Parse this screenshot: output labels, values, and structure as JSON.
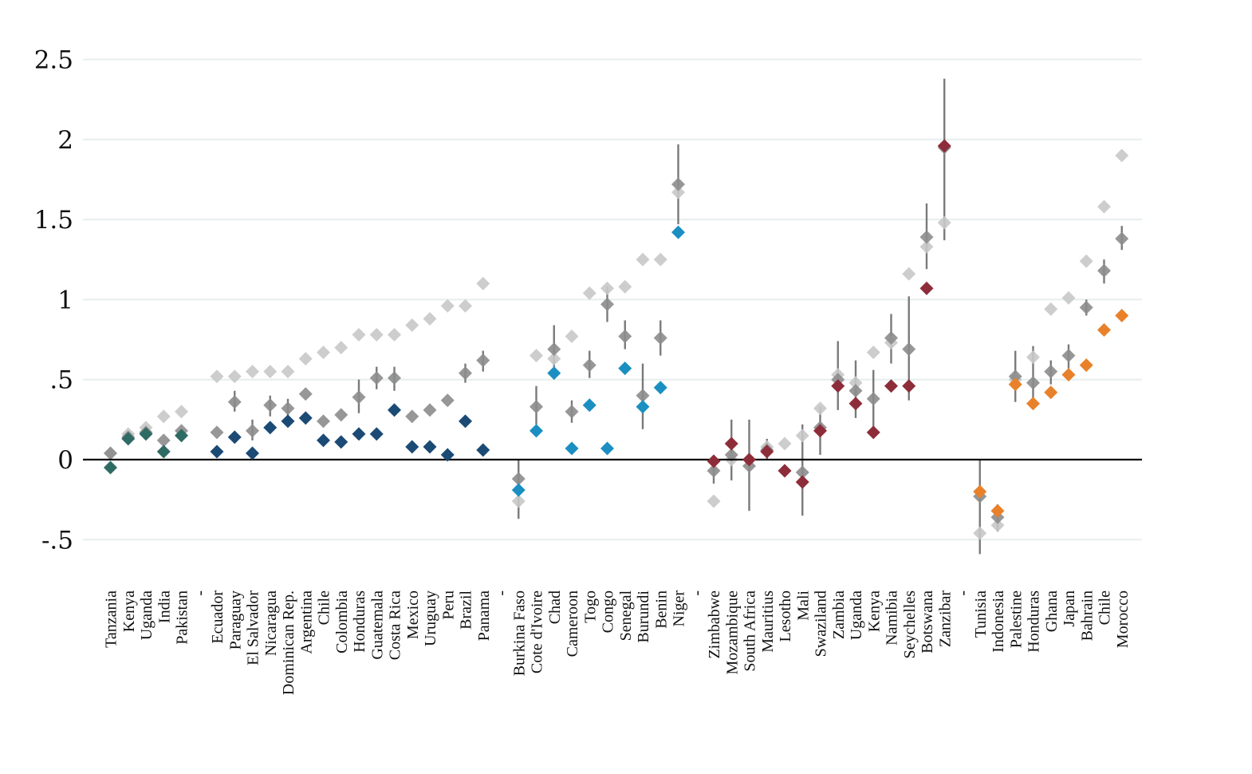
{
  "chart_data": {
    "type": "scatter",
    "ylim": [
      -0.62,
      2.62
    ],
    "yticks": [
      {
        "v": 2.5,
        "label": "2.5"
      },
      {
        "v": 2,
        "label": "2"
      },
      {
        "v": 1.5,
        "label": "1.5"
      },
      {
        "v": 1,
        "label": "1"
      },
      {
        "v": 0.5,
        "label": ".5"
      },
      {
        "v": 0,
        "label": "0"
      },
      {
        "v": -0.5,
        "label": "-.5"
      }
    ],
    "grid": true,
    "colors": {
      "group1": "#2e6b64",
      "group2": "#1b4a75",
      "group3": "#1b8fc2",
      "group4": "#8e2d3a",
      "group5": "#e8812a",
      "light": "#c8c8c8",
      "dark": "#8c8c8c",
      "errorbar": "#7a7a7a",
      "zero_line": "#000000",
      "gridline": "#e6efee"
    },
    "groups": [
      {
        "color_key": "group1",
        "countries": [
          {
            "label": "Tanzania",
            "main": -0.05,
            "light": 0.04,
            "dark": 0.04
          },
          {
            "label": "Kenya",
            "main": 0.13,
            "light": 0.16,
            "dark": 0.14
          },
          {
            "label": "Uganda",
            "main": 0.16,
            "light": 0.2,
            "dark": 0.17
          },
          {
            "label": "India",
            "main": 0.05,
            "light": 0.27,
            "dark": 0.12
          },
          {
            "label": "Pakistan",
            "main": 0.15,
            "light": 0.3,
            "dark": 0.18
          }
        ]
      },
      {
        "separator": "-"
      },
      {
        "color_key": "group2",
        "countries": [
          {
            "label": "Ecuador",
            "main": 0.05,
            "light": 0.52,
            "dark": 0.17
          },
          {
            "label": "Paraguay",
            "main": 0.14,
            "light": 0.52,
            "dark": 0.36,
            "dark_err": [
              0.3,
              0.43
            ]
          },
          {
            "label": "El Salvador",
            "main": 0.04,
            "light": 0.55,
            "dark": 0.18,
            "dark_err": [
              0.12,
              0.25
            ]
          },
          {
            "label": "Nicaragua",
            "main": 0.2,
            "light": 0.55,
            "dark": 0.34,
            "dark_err": [
              0.27,
              0.4
            ]
          },
          {
            "label": "Dominican Rep.",
            "main": 0.24,
            "light": 0.55,
            "dark": 0.32,
            "dark_err": [
              0.26,
              0.38
            ]
          },
          {
            "label": "Argentina",
            "main": 0.26,
            "light": 0.63,
            "dark": 0.41
          },
          {
            "label": "Chile",
            "main": 0.12,
            "light": 0.67,
            "dark": 0.24
          },
          {
            "label": "Colombia",
            "main": 0.11,
            "light": 0.7,
            "dark": 0.28
          },
          {
            "label": "Honduras",
            "main": 0.16,
            "light": 0.78,
            "dark": 0.39,
            "dark_err": [
              0.29,
              0.5
            ]
          },
          {
            "label": "Guatemala",
            "main": 0.16,
            "light": 0.78,
            "dark": 0.51,
            "dark_err": [
              0.44,
              0.58
            ]
          },
          {
            "label": "Costa Rica",
            "main": 0.31,
            "light": 0.78,
            "dark": 0.51,
            "dark_err": [
              0.43,
              0.58
            ]
          },
          {
            "label": "Mexico",
            "main": 0.08,
            "light": 0.84,
            "dark": 0.27
          },
          {
            "label": "Uruguay",
            "main": 0.08,
            "light": 0.88,
            "dark": 0.31
          },
          {
            "label": "Peru",
            "main": 0.03,
            "light": 0.96,
            "dark": 0.37
          },
          {
            "label": "Brazil",
            "main": 0.24,
            "light": 0.96,
            "dark": 0.54,
            "dark_err": [
              0.48,
              0.6
            ]
          },
          {
            "label": "Panama",
            "main": 0.06,
            "light": 1.1,
            "dark": 0.62,
            "dark_err": [
              0.55,
              0.68
            ]
          }
        ]
      },
      {
        "separator": "-"
      },
      {
        "color_key": "group3",
        "countries": [
          {
            "label": "Burkina Faso",
            "main": -0.19,
            "light": -0.26,
            "dark": -0.12,
            "dark_err": [
              -0.37,
              0.0
            ]
          },
          {
            "label": "Cote d'Ivoire",
            "main": 0.18,
            "light": 0.65,
            "dark": 0.33,
            "dark_err": [
              0.22,
              0.46
            ]
          },
          {
            "label": "Chad",
            "main": 0.54,
            "light": 0.63,
            "dark": 0.69,
            "dark_err": [
              0.58,
              0.84
            ]
          },
          {
            "label": "Cameroon",
            "main": 0.07,
            "light": 0.77,
            "dark": 0.3,
            "dark_err": [
              0.23,
              0.37
            ]
          },
          {
            "label": "Togo",
            "main": 0.34,
            "light": 1.04,
            "dark": 0.59,
            "dark_err": [
              0.51,
              0.68
            ]
          },
          {
            "label": "Congo",
            "main": 0.07,
            "light": 1.07,
            "dark": 0.97,
            "dark_err": [
              0.86,
              1.08
            ]
          },
          {
            "label": "Senegal",
            "main": 0.57,
            "light": 1.08,
            "dark": 0.77,
            "dark_err": [
              0.69,
              0.87
            ]
          },
          {
            "label": "Burundi",
            "main": 0.33,
            "light": 1.25,
            "dark": 0.4,
            "dark_err": [
              0.19,
              0.6
            ]
          },
          {
            "label": "Benin",
            "main": 0.45,
            "light": 1.25,
            "dark": 0.76,
            "dark_err": [
              0.65,
              0.87
            ]
          },
          {
            "label": "Niger",
            "main": 1.42,
            "light": 1.67,
            "dark": 1.72,
            "dark_err": [
              1.47,
              1.97
            ]
          }
        ]
      },
      {
        "separator": "-"
      },
      {
        "color_key": "group4",
        "countries": [
          {
            "label": "Zimbabwe",
            "main": -0.01,
            "light": -0.26,
            "dark": -0.07,
            "dark_err": [
              -0.15,
              0.0
            ]
          },
          {
            "label": "Mozambique",
            "main": 0.1,
            "light": 0.0,
            "dark": 0.03,
            "dark_err": [
              -0.13,
              0.25
            ]
          },
          {
            "label": "South Africa",
            "main": 0.0,
            "light": 0.0,
            "dark": -0.04,
            "dark_err": [
              -0.32,
              0.25
            ]
          },
          {
            "label": "Mauritius",
            "main": 0.05,
            "light": 0.08,
            "dark": 0.06,
            "dark_err": [
              0.0,
              0.13
            ]
          },
          {
            "label": "Lesotho",
            "main": -0.07,
            "light": 0.1,
            "dark": -0.07
          },
          {
            "label": "Mali",
            "main": -0.14,
            "light": 0.15,
            "dark": -0.08,
            "dark_err": [
              -0.35,
              0.22
            ]
          },
          {
            "label": "Swaziland",
            "main": 0.18,
            "light": 0.32,
            "dark": 0.2,
            "dark_err": [
              0.03,
              0.33
            ]
          },
          {
            "label": "Zambia",
            "main": 0.46,
            "light": 0.53,
            "dark": 0.5,
            "dark_err": [
              0.31,
              0.74
            ]
          },
          {
            "label": "Uganda",
            "main": 0.35,
            "light": 0.48,
            "dark": 0.43,
            "dark_err": [
              0.26,
              0.62
            ]
          },
          {
            "label": "Kenya",
            "main": 0.17,
            "light": 0.67,
            "dark": 0.38,
            "dark_err": [
              0.2,
              0.56
            ]
          },
          {
            "label": "Namibia",
            "main": 0.46,
            "light": 0.73,
            "dark": 0.76,
            "dark_err": [
              0.6,
              0.91
            ]
          },
          {
            "label": "Seychelles",
            "main": 0.46,
            "light": 1.16,
            "dark": 0.69,
            "dark_err": [
              0.37,
              1.02
            ]
          },
          {
            "label": "Botswana",
            "main": 1.07,
            "light": 1.33,
            "dark": 1.39,
            "dark_err": [
              1.19,
              1.6
            ]
          },
          {
            "label": "Zanzibar",
            "main": 1.96,
            "light": 1.48,
            "dark": 1.95,
            "dark_err": [
              1.37,
              2.38
            ]
          }
        ]
      },
      {
        "separator": "-"
      },
      {
        "color_key": "group5",
        "countries": [
          {
            "label": "Tunisia",
            "main": -0.2,
            "light": -0.46,
            "dark": -0.23,
            "dark_err": [
              -0.59,
              0.0
            ]
          },
          {
            "label": "Indonesia",
            "main": -0.32,
            "light": -0.41,
            "dark": -0.36,
            "dark_err": [
              -0.45,
              -0.28
            ]
          },
          {
            "label": "Palestine",
            "main": 0.47,
            "light": 0.5,
            "dark": 0.52,
            "dark_err": [
              0.36,
              0.68
            ]
          },
          {
            "label": "Honduras",
            "main": 0.35,
            "light": 0.64,
            "dark": 0.48,
            "dark_err": [
              0.35,
              0.71
            ]
          },
          {
            "label": "Ghana",
            "main": 0.42,
            "light": 0.94,
            "dark": 0.55,
            "dark_err": [
              0.47,
              0.62
            ]
          },
          {
            "label": "Japan",
            "main": 0.53,
            "light": 1.01,
            "dark": 0.65,
            "dark_err": [
              0.57,
              0.72
            ]
          },
          {
            "label": "Bahrain",
            "main": 0.59,
            "light": 1.24,
            "dark": 0.95,
            "dark_err": [
              0.9,
              1.0
            ]
          },
          {
            "label": "Chile",
            "main": 0.81,
            "light": 1.58,
            "dark": 1.18,
            "dark_err": [
              1.1,
              1.25
            ]
          },
          {
            "label": "Morocco",
            "main": 0.9,
            "light": 1.9,
            "dark": 1.38,
            "dark_err": [
              1.31,
              1.46
            ]
          }
        ]
      }
    ]
  }
}
